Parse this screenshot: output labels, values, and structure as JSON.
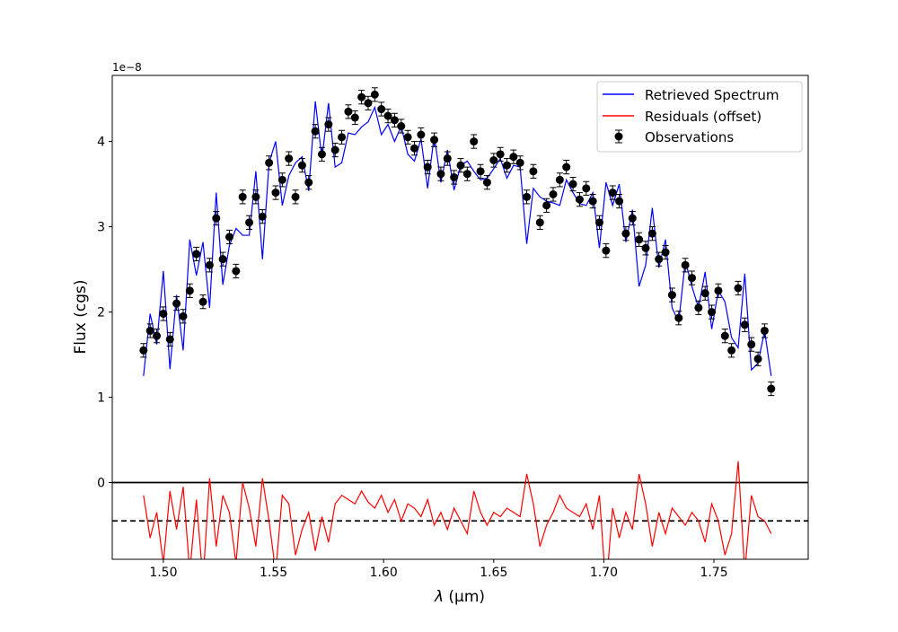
{
  "chart_data": {
    "type": "scatter",
    "title": "",
    "xlabel_symbol": "λ",
    "xlabel_unit": "(μm)",
    "ylabel": "Flux (cgs)",
    "y_offset_text": "1e−8",
    "xlim": [
      1.4768,
      1.7928
    ],
    "ylim": [
      -0.9,
      4.775
    ],
    "x_ticks": [
      1.5,
      1.55,
      1.6,
      1.65,
      1.7,
      1.75
    ],
    "x_tick_labels": [
      "1.50",
      "1.55",
      "1.60",
      "1.65",
      "1.70",
      "1.75"
    ],
    "y_ticks": [
      0,
      1,
      2,
      3,
      4
    ],
    "y_tick_labels": [
      "0",
      "1",
      "2",
      "3",
      "4"
    ],
    "grid": false,
    "legend_position": "top-right",
    "legend": [
      "Retrieved Spectrum",
      "Residuals (offset)",
      "Observations"
    ],
    "colors": {
      "model": "#0000ff",
      "residuals": "#ff0000",
      "observations": "#000000"
    },
    "zero_line": 0,
    "residual_offset": -0.45,
    "x_start": 1.491,
    "x_step": 0.003,
    "obs_error": 0.08,
    "flux": [
      1.55,
      1.78,
      1.72,
      1.98,
      1.68,
      2.1,
      1.95,
      2.25,
      2.68,
      2.12,
      2.55,
      3.1,
      2.62,
      2.88,
      2.48,
      3.35,
      3.05,
      3.35,
      3.12,
      3.75,
      3.4,
      3.55,
      3.8,
      3.35,
      3.72,
      3.52,
      4.12,
      3.85,
      4.2,
      3.9,
      4.05,
      4.35,
      4.28,
      4.52,
      4.45,
      4.55,
      4.38,
      4.3,
      4.25,
      4.18,
      4.05,
      3.92,
      4.08,
      3.7,
      4.02,
      3.62,
      3.8,
      3.58,
      3.72,
      3.62,
      4.0,
      3.65,
      3.52,
      3.78,
      3.85,
      3.72,
      3.82,
      3.75,
      3.35,
      3.65,
      3.05,
      3.25,
      3.38,
      3.55,
      3.7,
      3.5,
      3.32,
      3.45,
      3.3,
      3.05,
      2.72,
      3.4,
      3.3,
      2.92,
      3.1,
      2.85,
      2.75,
      2.92,
      2.62,
      2.7,
      2.2,
      1.93,
      2.55,
      2.4,
      2.05,
      2.22,
      2.0,
      2.25,
      1.72,
      1.55,
      2.28,
      1.85,
      1.62,
      1.45,
      1.78,
      1.1
    ],
    "residuals": [
      0.3,
      -0.2,
      0.1,
      -0.5,
      0.35,
      -0.1,
      0.4,
      -0.6,
      0.25,
      -0.7,
      0.5,
      -0.3,
      0.3,
      0.1,
      -0.5,
      0.45,
      0.15,
      -0.3,
      0.5,
      0.0,
      -0.6,
      0.3,
      0.2,
      -0.4,
      -0.1,
      0.1,
      -0.35,
      0.05,
      -0.25,
      0.2,
      0.3,
      0.25,
      0.2,
      0.35,
      0.22,
      0.15,
      0.3,
      0.1,
      0.25,
      0.0,
      0.2,
      0.15,
      0.05,
      0.25,
      -0.05,
      0.1,
      -0.1,
      0.15,
      0.0,
      -0.15,
      0.35,
      0.1,
      -0.05,
      0.1,
      0.05,
      0.15,
      0.1,
      0.05,
      0.55,
      0.2,
      -0.3,
      -0.05,
      0.1,
      0.3,
      0.15,
      0.1,
      0.05,
      0.2,
      -0.1,
      0.3,
      -0.8,
      0.15,
      -0.2,
      0.1,
      -0.1,
      0.55,
      0.2,
      -0.3,
      0.1,
      -0.15,
      0.15,
      0.05,
      -0.05,
      0.1,
      0.0,
      -0.25,
      0.2,
      0.0,
      -0.4,
      -0.15,
      0.7,
      -0.6,
      0.3,
      0.05,
      0.0,
      -0.15
    ]
  }
}
